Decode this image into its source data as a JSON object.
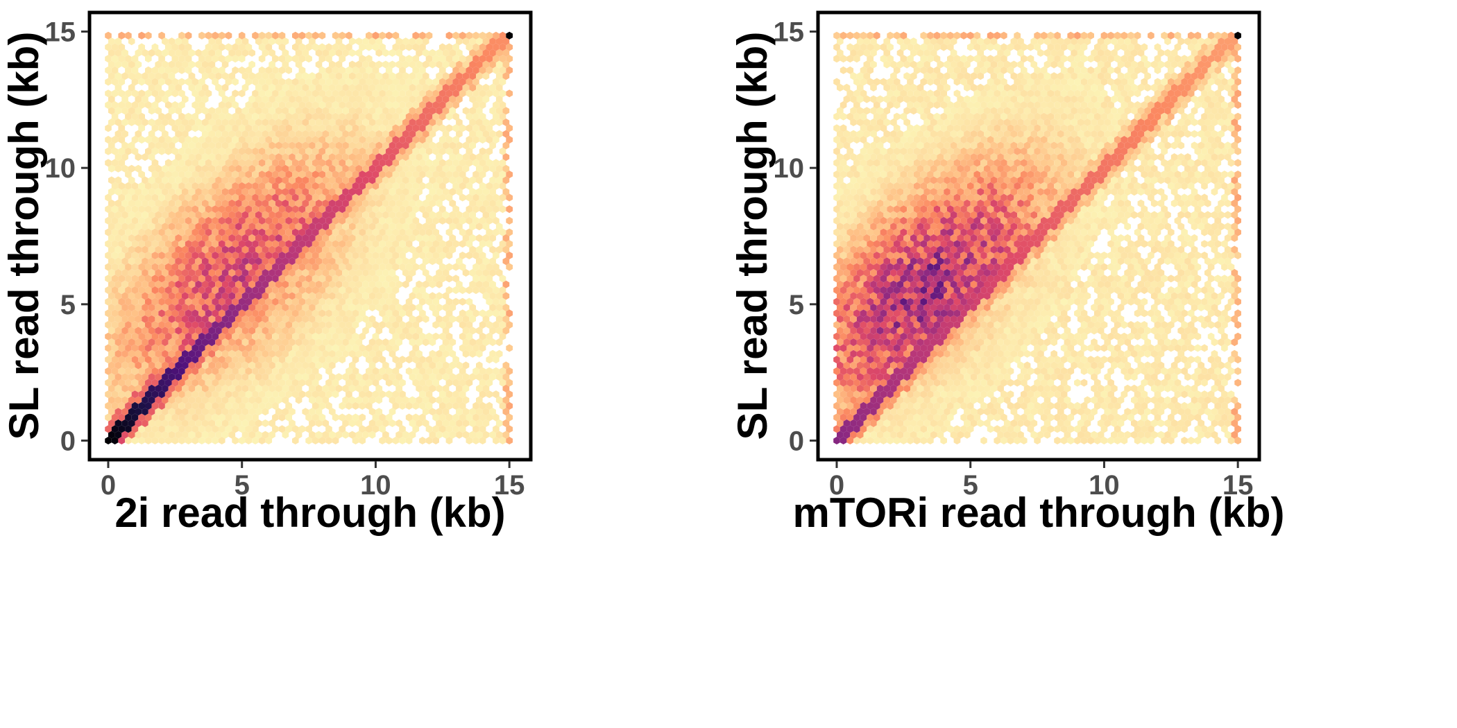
{
  "chart_data": [
    {
      "type": "hexbin",
      "xlabel": "2i read through (kb)",
      "ylabel": "SL read through (kb)",
      "xlim": [
        -0.7,
        15.8
      ],
      "ylim": [
        -0.7,
        15.7
      ],
      "x_ticks": [
        0,
        5,
        10,
        15
      ],
      "y_ticks": [
        0,
        5,
        10,
        15
      ],
      "grid": false,
      "legend": "none",
      "palette": [
        "#fcfdbf",
        "#fec287",
        "#fb8861",
        "#de4968",
        "#b73779",
        "#8c2981",
        "#51127c",
        "#1d1147",
        "#000004"
      ],
      "density_model": {
        "diagonal_strength": 1.0,
        "diagonal_decay_kb": 9.0,
        "cloud_center": [
          4.8,
          6.0
        ],
        "cloud_strength": 0.38,
        "cloud_spread_kb": 2.6,
        "cloud_upper_bias": 0.35,
        "background_density": 0.045,
        "cap_density_at_15kb": 0.14,
        "point_at_15_15": "max"
      }
    },
    {
      "type": "hexbin",
      "xlabel": "mTORi read through (kb)",
      "ylabel": "SL read through (kb)",
      "xlim": [
        -0.7,
        15.8
      ],
      "ylim": [
        -0.7,
        15.7
      ],
      "x_ticks": [
        0,
        5,
        10,
        15
      ],
      "y_ticks": [
        0,
        5,
        10,
        15
      ],
      "grid": false,
      "legend": "none",
      "palette": [
        "#fcfdbf",
        "#fec287",
        "#fb8861",
        "#de4968",
        "#b73779",
        "#8c2981",
        "#51127c",
        "#1d1147",
        "#000004"
      ],
      "density_model": {
        "diagonal_strength": 0.62,
        "diagonal_decay_kb": 11.0,
        "cloud_center": [
          3.4,
          5.6
        ],
        "cloud_strength": 0.52,
        "cloud_spread_kb": 2.5,
        "cloud_upper_bias": 0.6,
        "background_density": 0.05,
        "cap_density_at_15kb": 0.14,
        "point_at_15_15": "max"
      }
    }
  ]
}
